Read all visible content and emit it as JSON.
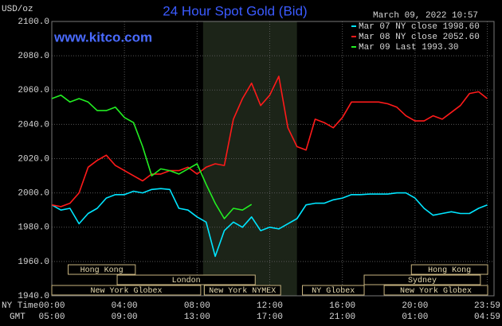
{
  "chart_data": {
    "type": "line",
    "title": "24 Hour Spot Gold (Bid)",
    "website": "www.kitco.com",
    "y_axis_label": "USD/oz",
    "timestamp": "March 09, 2022 10:57",
    "x_row_label": "NY Time",
    "x2_row_label": "GMT",
    "xlim": [
      0,
      24
    ],
    "xticks": [
      {
        "value": 0,
        "label": "00:00"
      },
      {
        "value": 4,
        "label": "04:00"
      },
      {
        "value": 8,
        "label": "08:00"
      },
      {
        "value": 12,
        "label": "12:00"
      },
      {
        "value": 16,
        "label": "16:00"
      },
      {
        "value": 20,
        "label": "20:00"
      },
      {
        "value": 23.98,
        "label": "23:59"
      }
    ],
    "x2_labels": [
      "05:00",
      "09:00",
      "13:00",
      "17:00",
      "21:00",
      "01:00",
      "04:59"
    ],
    "ylim": [
      1940,
      2100
    ],
    "yticks": [
      {
        "value": 1940,
        "label": "1940.0"
      },
      {
        "value": 1960,
        "label": "1960.0"
      },
      {
        "value": 1980,
        "label": "1980.0"
      },
      {
        "value": 2000,
        "label": "2000.0"
      },
      {
        "value": 2020,
        "label": "2020.0"
      },
      {
        "value": 2040,
        "label": "2040.0"
      },
      {
        "value": 2060,
        "label": "2060.0"
      },
      {
        "value": 2080,
        "label": "2080.0"
      },
      {
        "value": 2100,
        "label": "2100.0"
      }
    ],
    "grid": true,
    "highlight": {
      "start": 8.33,
      "end": 13.5,
      "color": "#1c2418"
    },
    "sessions": [
      {
        "name": "Hong Kong",
        "row": 0,
        "start": 0.9,
        "end": 4.6
      },
      {
        "name": "Hong Kong",
        "row": 0,
        "start": 19.8,
        "end": 24
      },
      {
        "name": "London",
        "row": 1,
        "start": 3.6,
        "end": 11.2
      },
      {
        "name": "Sydney",
        "row": 1,
        "start": 17.2,
        "end": 23.6
      },
      {
        "name": "New York Globex",
        "row": 2,
        "start": 0,
        "end": 8.2
      },
      {
        "name": "New York NYMEX",
        "row": 2,
        "start": 8.4,
        "end": 12.6
      },
      {
        "name": "NY Globex",
        "row": 2,
        "start": 13.8,
        "end": 17.2
      },
      {
        "name": "New York Globex",
        "row": 2,
        "start": 18.3,
        "end": 24
      }
    ],
    "x": [
      0,
      0.5,
      1,
      1.5,
      2,
      2.5,
      3,
      3.5,
      4,
      4.5,
      5,
      5.5,
      6,
      6.5,
      7,
      7.5,
      8,
      8.5,
      9,
      9.5,
      10,
      10.5,
      11,
      11.5,
      12,
      12.5,
      13,
      13.5,
      14,
      14.5,
      15,
      15.5,
      16,
      16.5,
      17,
      17.5,
      18,
      18.5,
      19,
      19.5,
      20,
      20.5,
      21,
      21.5,
      22,
      22.5,
      23,
      23.5,
      23.98
    ],
    "series": [
      {
        "name": "Mar 07 NY close 1998.60",
        "color": "#00e5ff",
        "values": [
          1993,
          1990,
          1991,
          1982,
          1988,
          1991,
          1997,
          1999,
          1999,
          2001,
          2000,
          2002,
          2002.5,
          2002,
          1991,
          1990,
          1986,
          1983,
          1963,
          1978,
          1983,
          1980,
          1986,
          1978,
          1980,
          1979,
          1982,
          1985,
          1993,
          1994,
          1994,
          1996,
          1997,
          1999,
          1999,
          1999.3,
          1999.3,
          1999.3,
          2000,
          2000,
          1997,
          1991,
          1987,
          1988,
          1989,
          1988,
          1988,
          1991,
          1993
        ]
      },
      {
        "name": "Mar 08 NY close 2052.60",
        "color": "#ff1a1a",
        "values": [
          1993,
          1992,
          1994,
          2000,
          2015,
          2019,
          2022,
          2016,
          2013,
          2010,
          2007,
          2011,
          2011,
          2013,
          2013,
          2015,
          2011,
          2015,
          2017,
          2016,
          2043,
          2055,
          2064,
          2051,
          2057,
          2068,
          2038,
          2027,
          2025,
          2043,
          2041,
          2038,
          2044,
          2053,
          2053,
          2053,
          2053,
          2052,
          2050,
          2045,
          2042,
          2042,
          2045,
          2043,
          2047,
          2051,
          2058,
          2059,
          2055
        ]
      },
      {
        "name": "Mar 09 Last 1993.30",
        "color": "#22ee22",
        "values": [
          2055,
          2057,
          2053,
          2055,
          2053,
          2048,
          2048,
          2050,
          2044,
          2041,
          2027,
          2010,
          2014,
          2013,
          2011,
          2014,
          2017,
          2005,
          1994,
          1985,
          1991,
          1990,
          1993.3,
          null,
          null,
          null,
          null,
          null,
          null,
          null,
          null,
          null,
          null,
          null,
          null,
          null,
          null,
          null,
          null,
          null,
          null,
          null,
          null,
          null,
          null,
          null,
          null,
          null,
          null
        ]
      }
    ]
  }
}
